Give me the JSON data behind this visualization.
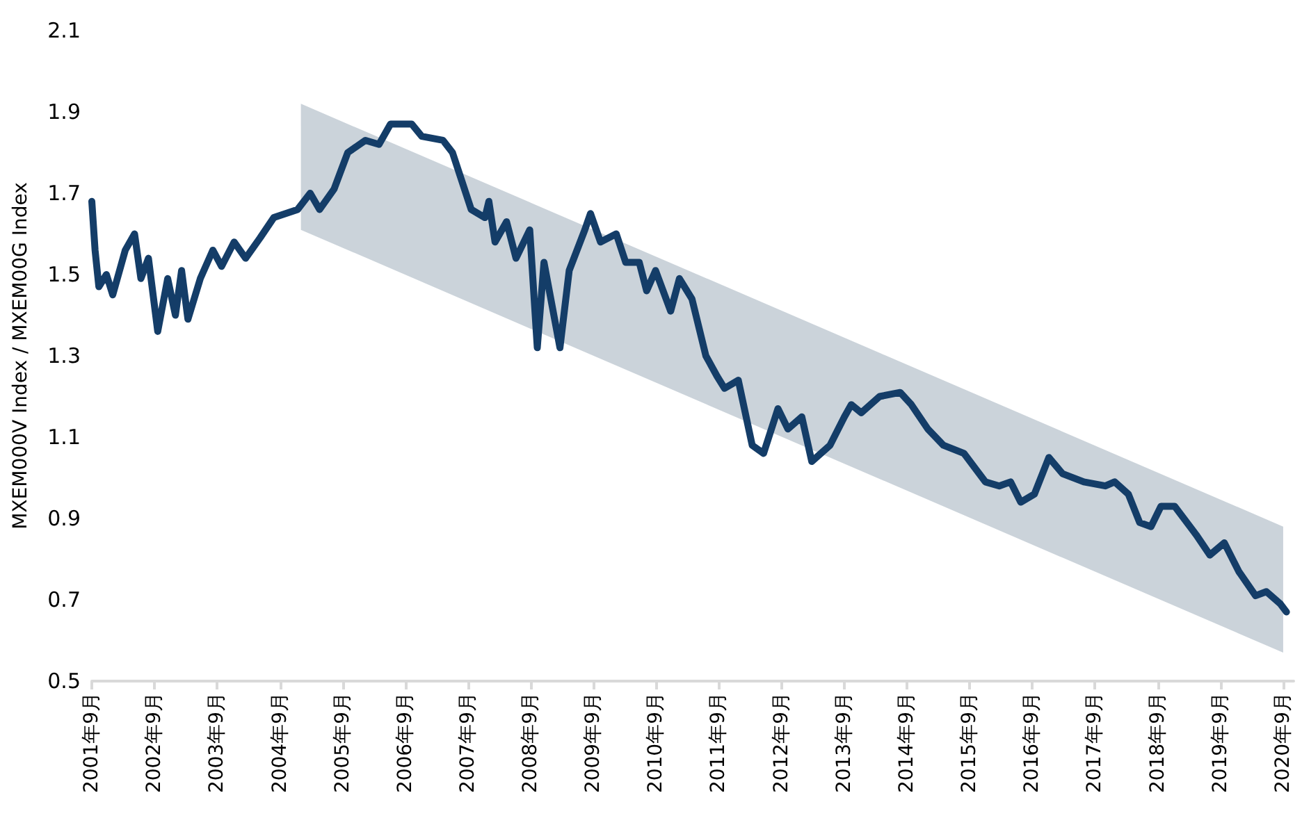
{
  "chart_data": {
    "type": "line",
    "ylabel": "MXEM000V Index / MXEM00G Index",
    "xlim": [
      "2001-09-01",
      "2020-11-01"
    ],
    "xticks": [
      {
        "value": "2001-09",
        "label": "2001年9月"
      },
      {
        "value": "2002-09",
        "label": "2002年9月"
      },
      {
        "value": "2003-09",
        "label": "2003年9月"
      },
      {
        "value": "2004-09",
        "label": "2004年9月"
      },
      {
        "value": "2005-09",
        "label": "2005年9月"
      },
      {
        "value": "2006-09",
        "label": "2006年9月"
      },
      {
        "value": "2007-09",
        "label": "2007年9月"
      },
      {
        "value": "2008-09",
        "label": "2008年9月"
      },
      {
        "value": "2009-09",
        "label": "2009年9月"
      },
      {
        "value": "2010-09",
        "label": "2010年9月"
      },
      {
        "value": "2011-09",
        "label": "2011年9月"
      },
      {
        "value": "2012-09",
        "label": "2012年9月"
      },
      {
        "value": "2013-09",
        "label": "2013年9月"
      },
      {
        "value": "2014-09",
        "label": "2014年9月"
      },
      {
        "value": "2015-09",
        "label": "2015年9月"
      },
      {
        "value": "2016-09",
        "label": "2016年9月"
      },
      {
        "value": "2017-09",
        "label": "2017年9月"
      },
      {
        "value": "2018-09",
        "label": "2018年9月"
      },
      {
        "value": "2019-09",
        "label": "2019年9月"
      },
      {
        "value": "2020-09",
        "label": "2020年9月"
      }
    ],
    "ylim": [
      0.5,
      2.1
    ],
    "yticks": [
      0.5,
      0.7,
      0.9,
      1.1,
      1.3,
      1.5,
      1.7,
      1.9,
      2.1
    ],
    "grid": false,
    "marker": "none",
    "line_style": "solid",
    "series": [
      {
        "color": "#cbd3da",
        "x": [
          "2005-01-01",
          "2020-09-01"
        ],
        "values": [
          null,
          null
        ],
        "lower": [
          1.61,
          0.57
        ],
        "upper": [
          1.92,
          0.88
        ]
      },
      {
        "color": "#143d68",
        "x": [
          "2001-09-01",
          "2001-09-20",
          "2001-10-12",
          "2001-11-25",
          "2002-01-01",
          "2002-03-15",
          "2002-05-08",
          "2002-06-14",
          "2002-07-28",
          "2002-09-20",
          "2002-11-17",
          "2003-01-01",
          "2003-02-06",
          "2003-03-15",
          "2003-05-26",
          "2003-08-07",
          "2003-09-27",
          "2003-12-09",
          "2004-02-14",
          "2004-05-08",
          "2004-07-27",
          "2004-12-13",
          "2005-02-24",
          "2005-04-20",
          "2005-07-13",
          "2005-10-01",
          "2006-01-12",
          "2006-04-01",
          "2006-06-07",
          "2006-10-09",
          "2006-12-06",
          "2007-04-09",
          "2007-06-03",
          "2007-09-20",
          "2007-12-09",
          "2008-01-01",
          "2008-02-06",
          "2008-04-13",
          "2008-06-07",
          "2008-08-26",
          "2008-10-09",
          "2008-11-17",
          "2009-02-18",
          "2009-04-13",
          "2009-07-13",
          "2009-08-15",
          "2009-10-12",
          "2010-01-12",
          "2010-03-08",
          "2010-05-26",
          "2010-07-08",
          "2010-08-29",
          "2010-11-25",
          "2011-01-15",
          "2011-03-29",
          "2011-06-18",
          "2011-08-22",
          "2011-10-05",
          "2011-12-24",
          "2012-03-14",
          "2012-05-19",
          "2012-08-11",
          "2012-10-08",
          "2012-12-28",
          "2013-02-24",
          "2013-06-10",
          "2013-09-02",
          "2013-10-12",
          "2013-12-09",
          "2014-03-26",
          "2014-07-24",
          "2014-09-27",
          "2015-01-01",
          "2015-04-02",
          "2015-07-31",
          "2015-12-02",
          "2016-02-21",
          "2016-04-27",
          "2016-06-25",
          "2016-09-13",
          "2016-12-06",
          "2017-02-24",
          "2017-06-28",
          "2017-10-31",
          "2017-12-24",
          "2018-03-14",
          "2018-05-19",
          "2018-07-24",
          "2018-09-20",
          "2018-12-09",
          "2019-04-13",
          "2019-07-02",
          "2019-09-24",
          "2019-12-17",
          "2020-03-24",
          "2020-05-26",
          "2020-08-15",
          "2020-09-20"
        ],
        "values": [
          1.68,
          1.56,
          1.47,
          1.5,
          1.45,
          1.56,
          1.6,
          1.49,
          1.54,
          1.36,
          1.49,
          1.4,
          1.51,
          1.39,
          1.49,
          1.56,
          1.52,
          1.58,
          1.54,
          1.59,
          1.64,
          1.66,
          1.7,
          1.66,
          1.71,
          1.8,
          1.83,
          1.82,
          1.87,
          1.87,
          1.84,
          1.83,
          1.8,
          1.66,
          1.64,
          1.68,
          1.58,
          1.63,
          1.54,
          1.61,
          1.32,
          1.53,
          1.32,
          1.51,
          1.61,
          1.65,
          1.58,
          1.6,
          1.53,
          1.53,
          1.46,
          1.51,
          1.41,
          1.49,
          1.44,
          1.3,
          1.25,
          1.22,
          1.24,
          1.08,
          1.06,
          1.17,
          1.12,
          1.15,
          1.04,
          1.08,
          1.15,
          1.18,
          1.16,
          1.2,
          1.21,
          1.18,
          1.12,
          1.08,
          1.06,
          0.99,
          0.98,
          0.99,
          0.94,
          0.96,
          1.05,
          1.01,
          0.99,
          0.98,
          0.99,
          0.96,
          0.89,
          0.88,
          0.93,
          0.93,
          0.86,
          0.81,
          0.84,
          0.77,
          0.71,
          0.72,
          0.69,
          0.67
        ]
      }
    ]
  }
}
